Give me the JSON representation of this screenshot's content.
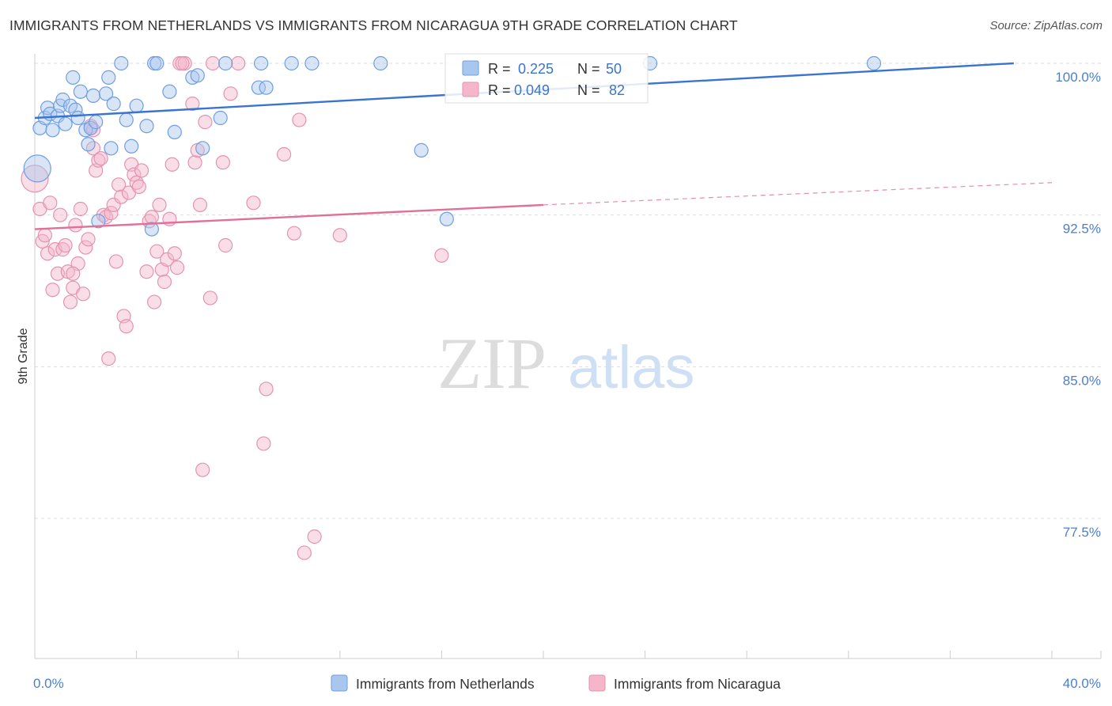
{
  "title": "IMMIGRANTS FROM NETHERLANDS VS IMMIGRANTS FROM NICARAGUA 9TH GRADE CORRELATION CHART",
  "source": "Source: ZipAtlas.com",
  "watermark": {
    "zip": "ZIP",
    "atlas": "atlas"
  },
  "colors": {
    "blue": "#3a74d0",
    "pink": "#e07098",
    "blue_fill": "#a9c6ee",
    "pink_fill": "#f5b6c9",
    "axis_text": "#4a7fd0"
  },
  "chart_data": {
    "type": "scatter",
    "xlabel": "",
    "ylabel": "9th Grade",
    "xlim": [
      0,
      40
    ],
    "ylim": [
      70.5,
      100.8
    ],
    "x_tick_labels": [
      "0.0%",
      "40.0%"
    ],
    "y_ticks": [
      77.5,
      85.0,
      92.5,
      100.0
    ],
    "y_tick_labels": [
      "77.5%",
      "85.0%",
      "92.5%",
      "100.0%"
    ],
    "legend": {
      "r_label": "R =",
      "n_label": "N ="
    },
    "series": [
      {
        "name": "Immigrants from Netherlands",
        "color": "blue",
        "R": "0.225",
        "N": "50",
        "trend": {
          "x": [
            0,
            38.5
          ],
          "y": [
            97.3,
            100.0
          ],
          "dashed_to": null
        },
        "points": [
          {
            "x": 0.1,
            "y": 94.8,
            "s": "l"
          },
          {
            "x": 0.2,
            "y": 96.8
          },
          {
            "x": 0.4,
            "y": 97.3
          },
          {
            "x": 0.5,
            "y": 97.8
          },
          {
            "x": 0.6,
            "y": 97.5
          },
          {
            "x": 0.7,
            "y": 96.7
          },
          {
            "x": 0.9,
            "y": 97.4
          },
          {
            "x": 1.0,
            "y": 97.9
          },
          {
            "x": 1.1,
            "y": 98.2
          },
          {
            "x": 1.2,
            "y": 97.0
          },
          {
            "x": 1.4,
            "y": 97.9
          },
          {
            "x": 1.5,
            "y": 99.3
          },
          {
            "x": 1.6,
            "y": 97.7
          },
          {
            "x": 1.7,
            "y": 97.3
          },
          {
            "x": 1.8,
            "y": 98.6
          },
          {
            "x": 2.0,
            "y": 96.7
          },
          {
            "x": 2.1,
            "y": 96.0
          },
          {
            "x": 2.2,
            "y": 96.8
          },
          {
            "x": 2.3,
            "y": 98.4
          },
          {
            "x": 2.4,
            "y": 97.1
          },
          {
            "x": 2.5,
            "y": 92.2
          },
          {
            "x": 2.8,
            "y": 98.5
          },
          {
            "x": 2.9,
            "y": 99.3
          },
          {
            "x": 3.0,
            "y": 95.8
          },
          {
            "x": 3.1,
            "y": 98.0
          },
          {
            "x": 3.4,
            "y": 100.0
          },
          {
            "x": 3.6,
            "y": 97.2
          },
          {
            "x": 3.8,
            "y": 95.9
          },
          {
            "x": 4.0,
            "y": 97.9
          },
          {
            "x": 4.4,
            "y": 96.9
          },
          {
            "x": 4.6,
            "y": 91.8
          },
          {
            "x": 4.7,
            "y": 100.0
          },
          {
            "x": 4.8,
            "y": 100.0
          },
          {
            "x": 5.3,
            "y": 98.6
          },
          {
            "x": 5.5,
            "y": 96.6
          },
          {
            "x": 6.2,
            "y": 99.3
          },
          {
            "x": 6.4,
            "y": 99.4
          },
          {
            "x": 6.6,
            "y": 95.8
          },
          {
            "x": 7.3,
            "y": 97.3
          },
          {
            "x": 7.5,
            "y": 100.0
          },
          {
            "x": 8.8,
            "y": 98.8
          },
          {
            "x": 9.1,
            "y": 98.8
          },
          {
            "x": 8.9,
            "y": 100.0
          },
          {
            "x": 10.1,
            "y": 100.0
          },
          {
            "x": 10.9,
            "y": 100.0
          },
          {
            "x": 13.6,
            "y": 100.0
          },
          {
            "x": 15.2,
            "y": 95.7
          },
          {
            "x": 16.2,
            "y": 92.3
          },
          {
            "x": 24.2,
            "y": 100.0
          },
          {
            "x": 33.0,
            "y": 100.0
          }
        ]
      },
      {
        "name": "Immigrants from Nicaragua",
        "color": "pink",
        "R": "0.049",
        "N": "82",
        "trend": {
          "x": [
            0,
            20
          ],
          "y": [
            91.8,
            93.0
          ],
          "dashed_to": [
            40,
            94.1
          ]
        },
        "points": [
          {
            "x": 0.0,
            "y": 94.3,
            "s": "l"
          },
          {
            "x": 0.2,
            "y": 92.8
          },
          {
            "x": 0.3,
            "y": 91.2
          },
          {
            "x": 0.4,
            "y": 91.5
          },
          {
            "x": 0.5,
            "y": 90.6
          },
          {
            "x": 0.6,
            "y": 93.1
          },
          {
            "x": 0.7,
            "y": 88.8
          },
          {
            "x": 0.8,
            "y": 90.8
          },
          {
            "x": 0.9,
            "y": 89.6
          },
          {
            "x": 1.0,
            "y": 92.5
          },
          {
            "x": 1.1,
            "y": 90.8
          },
          {
            "x": 1.2,
            "y": 91.0
          },
          {
            "x": 1.3,
            "y": 89.7
          },
          {
            "x": 1.4,
            "y": 88.2
          },
          {
            "x": 1.5,
            "y": 88.9
          },
          {
            "x": 1.6,
            "y": 92.0
          },
          {
            "x": 1.7,
            "y": 90.1
          },
          {
            "x": 1.8,
            "y": 92.8
          },
          {
            "x": 1.9,
            "y": 88.6
          },
          {
            "x": 2.0,
            "y": 90.9
          },
          {
            "x": 2.1,
            "y": 91.3
          },
          {
            "x": 2.2,
            "y": 96.9
          },
          {
            "x": 2.3,
            "y": 95.8
          },
          {
            "x": 2.4,
            "y": 94.7
          },
          {
            "x": 2.5,
            "y": 95.2
          },
          {
            "x": 2.6,
            "y": 95.3
          },
          {
            "x": 2.7,
            "y": 92.5
          },
          {
            "x": 2.8,
            "y": 92.4
          },
          {
            "x": 2.9,
            "y": 85.4
          },
          {
            "x": 3.0,
            "y": 92.6
          },
          {
            "x": 3.1,
            "y": 93.0
          },
          {
            "x": 3.2,
            "y": 90.2
          },
          {
            "x": 3.3,
            "y": 94.0
          },
          {
            "x": 3.4,
            "y": 93.4
          },
          {
            "x": 3.5,
            "y": 87.5
          },
          {
            "x": 3.6,
            "y": 87.0
          },
          {
            "x": 3.7,
            "y": 93.6
          },
          {
            "x": 3.8,
            "y": 95.0
          },
          {
            "x": 3.9,
            "y": 94.5
          },
          {
            "x": 4.0,
            "y": 94.1
          },
          {
            "x": 4.1,
            "y": 93.9
          },
          {
            "x": 4.2,
            "y": 94.7
          },
          {
            "x": 4.4,
            "y": 89.7
          },
          {
            "x": 4.5,
            "y": 92.2
          },
          {
            "x": 4.6,
            "y": 92.4
          },
          {
            "x": 4.7,
            "y": 88.2
          },
          {
            "x": 4.8,
            "y": 90.7
          },
          {
            "x": 4.9,
            "y": 93.0
          },
          {
            "x": 5.0,
            "y": 89.8
          },
          {
            "x": 5.1,
            "y": 89.2
          },
          {
            "x": 5.2,
            "y": 90.3
          },
          {
            "x": 5.3,
            "y": 92.3
          },
          {
            "x": 5.4,
            "y": 95.0
          },
          {
            "x": 5.5,
            "y": 90.6
          },
          {
            "x": 5.6,
            "y": 89.9
          },
          {
            "x": 5.7,
            "y": 100.0
          },
          {
            "x": 5.9,
            "y": 100.0
          },
          {
            "x": 6.2,
            "y": 98.0
          },
          {
            "x": 6.3,
            "y": 95.1
          },
          {
            "x": 6.4,
            "y": 95.7
          },
          {
            "x": 6.5,
            "y": 93.0
          },
          {
            "x": 6.6,
            "y": 79.9
          },
          {
            "x": 6.7,
            "y": 97.1
          },
          {
            "x": 6.9,
            "y": 88.4
          },
          {
            "x": 7.0,
            "y": 100.0
          },
          {
            "x": 7.4,
            "y": 95.1
          },
          {
            "x": 7.5,
            "y": 91.0
          },
          {
            "x": 7.7,
            "y": 98.5
          },
          {
            "x": 8.0,
            "y": 100.0
          },
          {
            "x": 8.6,
            "y": 93.1
          },
          {
            "x": 9.0,
            "y": 81.2
          },
          {
            "x": 9.1,
            "y": 83.9
          },
          {
            "x": 9.8,
            "y": 95.5
          },
          {
            "x": 10.4,
            "y": 97.2
          },
          {
            "x": 10.2,
            "y": 91.6
          },
          {
            "x": 10.6,
            "y": 75.8
          },
          {
            "x": 11.0,
            "y": 76.6
          },
          {
            "x": 12.0,
            "y": 91.5
          },
          {
            "x": 16.0,
            "y": 90.5
          },
          {
            "x": 5.8,
            "y": 100.0
          },
          {
            "x": 2.3,
            "y": 96.7
          },
          {
            "x": 1.5,
            "y": 89.6
          }
        ]
      }
    ]
  }
}
